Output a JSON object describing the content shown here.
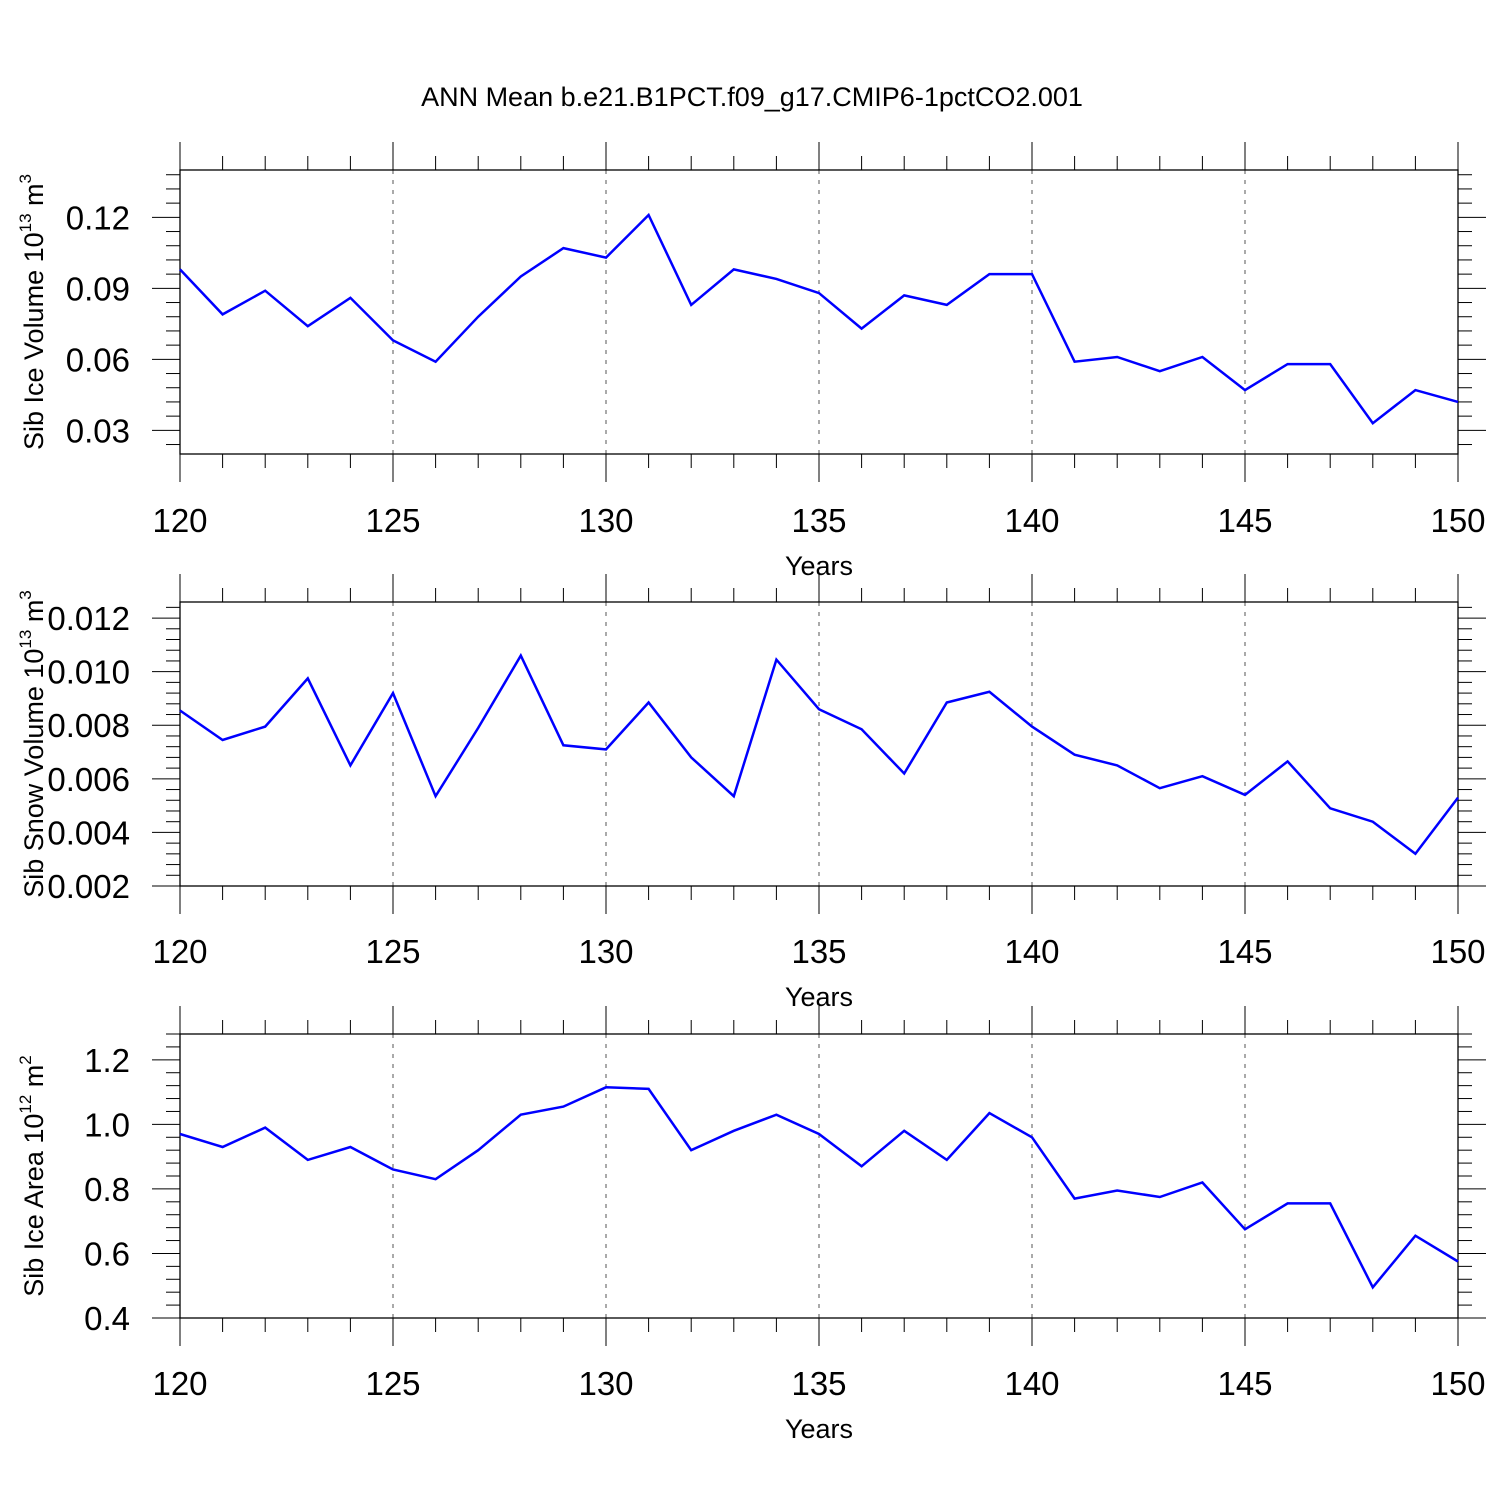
{
  "chart_data": {
    "title": "ANN Mean b.e21.B1PCT.f09_g17.CMIP6-1pctCO2.001",
    "type": "line",
    "x": [
      120,
      121,
      122,
      123,
      124,
      125,
      126,
      127,
      128,
      129,
      130,
      131,
      132,
      133,
      134,
      135,
      136,
      137,
      138,
      139,
      140,
      141,
      142,
      143,
      144,
      145,
      146,
      147,
      148,
      149,
      150
    ],
    "panels": [
      {
        "ylabel_main": "Sib Ice Volume 10",
        "ylabel_sup": "13",
        "ylabel_unit": " m",
        "ylabel_unit_sup": "3",
        "xlabel": "Years",
        "xlim": [
          120,
          150
        ],
        "ylim": [
          0.02,
          0.14
        ],
        "yticks": [
          0.03,
          0.06,
          0.09,
          0.12
        ],
        "ytick_labels": [
          "0.03",
          "0.06",
          "0.09",
          "0.12"
        ],
        "xticks": [
          120,
          125,
          130,
          135,
          140,
          145,
          150
        ],
        "xtick_labels": [
          "120",
          "125",
          "130",
          "135",
          "140",
          "145",
          "150"
        ],
        "grid": "dashed vertical",
        "color": "#0000ff",
        "values": [
          0.098,
          0.079,
          0.089,
          0.074,
          0.086,
          0.068,
          0.059,
          0.078,
          0.095,
          0.107,
          0.103,
          0.121,
          0.083,
          0.098,
          0.094,
          0.088,
          0.073,
          0.087,
          0.083,
          0.096,
          0.096,
          0.059,
          0.061,
          0.055,
          0.061,
          0.047,
          0.058,
          0.058,
          0.033,
          0.047,
          0.042
        ]
      },
      {
        "ylabel_main": "Sib Snow Volume 10",
        "ylabel_sup": "13",
        "ylabel_unit": " m",
        "ylabel_unit_sup": "3",
        "xlabel": "Years",
        "xlim": [
          120,
          150
        ],
        "ylim": [
          0.002,
          0.0126
        ],
        "yticks": [
          0.002,
          0.004,
          0.006,
          0.008,
          0.01,
          0.012
        ],
        "ytick_labels": [
          "0.002",
          "0.004",
          "0.006",
          "0.008",
          "0.010",
          "0.012"
        ],
        "xticks": [
          120,
          125,
          130,
          135,
          140,
          145,
          150
        ],
        "xtick_labels": [
          "120",
          "125",
          "130",
          "135",
          "140",
          "145",
          "150"
        ],
        "grid": "dashed vertical",
        "color": "#0000ff",
        "values": [
          0.00855,
          0.00745,
          0.00795,
          0.00975,
          0.0065,
          0.0092,
          0.00535,
          0.0079,
          0.0106,
          0.00725,
          0.0071,
          0.00885,
          0.0068,
          0.00535,
          0.01045,
          0.0086,
          0.00785,
          0.0062,
          0.00885,
          0.00925,
          0.00795,
          0.0069,
          0.0065,
          0.00565,
          0.0061,
          0.0054,
          0.00665,
          0.0049,
          0.0044,
          0.0032,
          0.0053
        ]
      },
      {
        "ylabel_main": "Sib Ice Area 10",
        "ylabel_sup": "12",
        "ylabel_unit": " m",
        "ylabel_unit_sup": "2",
        "xlabel": "Years",
        "xlim": [
          120,
          150
        ],
        "ylim": [
          0.4,
          1.28
        ],
        "yticks": [
          0.4,
          0.6,
          0.8,
          1.0,
          1.2
        ],
        "ytick_labels": [
          "0.4",
          "0.6",
          "0.8",
          "1.0",
          "1.2"
        ],
        "xticks": [
          120,
          125,
          130,
          135,
          140,
          145,
          150
        ],
        "xtick_labels": [
          "120",
          "125",
          "130",
          "135",
          "140",
          "145",
          "150"
        ],
        "grid": "dashed vertical",
        "color": "#0000ff",
        "values": [
          0.97,
          0.93,
          0.99,
          0.89,
          0.93,
          0.86,
          0.83,
          0.92,
          1.03,
          1.055,
          1.115,
          1.11,
          0.92,
          0.98,
          1.03,
          0.97,
          0.87,
          0.98,
          0.89,
          1.035,
          0.96,
          0.77,
          0.795,
          0.775,
          0.82,
          0.675,
          0.755,
          0.755,
          0.495,
          0.655,
          0.575
        ]
      }
    ]
  }
}
